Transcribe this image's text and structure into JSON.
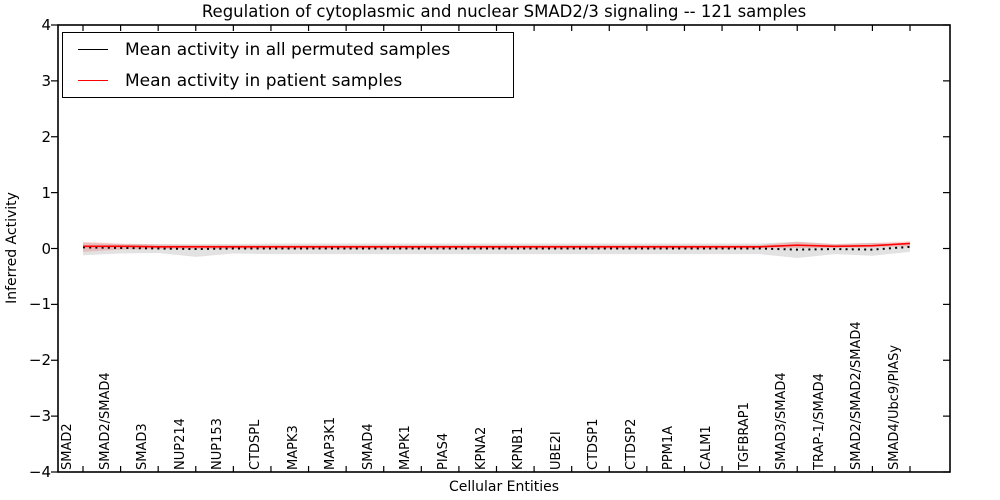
{
  "figure": {
    "title": "Regulation of cytoplasmic and nuclear SMAD2/3 signaling -- 121 samples",
    "xlabel": "Cellular Entities",
    "ylabel": "Inferred Activity"
  },
  "legend": {
    "entries": [
      {
        "label": "Mean activity in all permuted samples",
        "color": "#000000"
      },
      {
        "label": "Mean activity in patient samples",
        "color": "#ff0000"
      }
    ]
  },
  "colors": {
    "permuted_line": "#000000",
    "patient_line": "#ff0000",
    "permuted_band": "rgba(125,125,125,0.22)",
    "patient_band": "rgba(255,0,0,0.16)",
    "axis": "#000000"
  },
  "chart_data": {
    "type": "line",
    "title": "Regulation of cytoplasmic and nuclear SMAD2/3 signaling -- 121 samples",
    "xlabel": "Cellular Entities",
    "ylabel": "Inferred Activity",
    "ylim": [
      -4,
      4
    ],
    "grid": false,
    "legend_position": "upper left",
    "y_tick_values": [
      4,
      3,
      2,
      1,
      0,
      -1,
      -2,
      -3,
      -4
    ],
    "y_tick_labels": [
      "4",
      "3",
      "2",
      "1",
      "0",
      "−1",
      "−2",
      "−3",
      "−4"
    ],
    "categories": [
      "SMAD2",
      "SMAD2/SMAD4",
      "SMAD3",
      "NUP214",
      "NUP153",
      "CTDSPL",
      "MAPK3",
      "MAP3K1",
      "SMAD4",
      "MAPK1",
      "PIAS4",
      "KPNA2",
      "KPNB1",
      "UBE2I",
      "CTDSP1",
      "CTDSP2",
      "PPM1A",
      "CALM1",
      "TGFBRAP1",
      "SMAD3/SMAD4",
      "TRAP-1/SMAD4",
      "SMAD2/SMAD2/SMAD4",
      "SMAD4/Ubc9/PIASy"
    ],
    "series": [
      {
        "name": "Mean activity in all permuted samples",
        "color": "#000000",
        "style": "dotted",
        "values": [
          0.02,
          0.01,
          0.0,
          -0.01,
          0.0,
          0.0,
          0.0,
          0.0,
          0.0,
          0.0,
          0.0,
          0.0,
          0.0,
          0.0,
          0.0,
          0.0,
          0.0,
          0.0,
          0.0,
          -0.02,
          -0.01,
          -0.02,
          0.03
        ]
      },
      {
        "name": "Mean activity in patient samples",
        "color": "#ff0000",
        "style": "solid",
        "values": [
          0.04,
          0.04,
          0.03,
          0.03,
          0.03,
          0.03,
          0.03,
          0.03,
          0.03,
          0.03,
          0.03,
          0.03,
          0.03,
          0.03,
          0.03,
          0.03,
          0.03,
          0.03,
          0.03,
          0.06,
          0.04,
          0.05,
          0.09
        ]
      }
    ],
    "bands": [
      {
        "name": "permuted-activity-range",
        "color": "rgba(125,125,125,0.22)",
        "upper": [
          0.1,
          0.08,
          0.08,
          0.08,
          0.08,
          0.09,
          0.09,
          0.09,
          0.09,
          0.09,
          0.09,
          0.09,
          0.09,
          0.09,
          0.09,
          0.09,
          0.09,
          0.09,
          0.09,
          0.12,
          0.08,
          0.1,
          0.08
        ],
        "lower": [
          -0.12,
          -0.09,
          -0.08,
          -0.15,
          -0.09,
          -0.1,
          -0.1,
          -0.1,
          -0.1,
          -0.1,
          -0.1,
          -0.1,
          -0.1,
          -0.1,
          -0.1,
          -0.1,
          -0.1,
          -0.1,
          -0.1,
          -0.17,
          -0.1,
          -0.13,
          -0.06
        ]
      },
      {
        "name": "patient-activity-range",
        "color": "rgba(255,0,0,0.16)",
        "upper": [
          0.12,
          0.09,
          0.07,
          0.06,
          0.06,
          0.06,
          0.06,
          0.06,
          0.06,
          0.06,
          0.06,
          0.06,
          0.06,
          0.06,
          0.06,
          0.06,
          0.06,
          0.06,
          0.06,
          0.12,
          0.08,
          0.1,
          0.13
        ],
        "lower": [
          -0.06,
          -0.02,
          -0.01,
          -0.01,
          -0.01,
          -0.01,
          -0.01,
          -0.01,
          -0.01,
          -0.01,
          -0.01,
          -0.01,
          -0.01,
          -0.01,
          -0.01,
          -0.01,
          -0.01,
          -0.01,
          0.0,
          0.01,
          0.01,
          0.02,
          0.04
        ]
      }
    ]
  }
}
